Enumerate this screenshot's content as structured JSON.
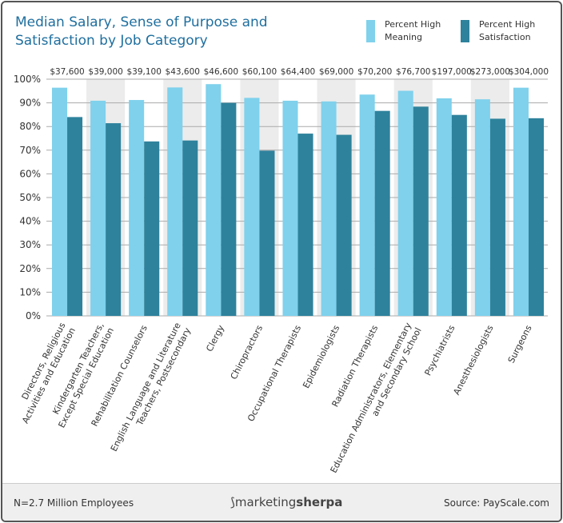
{
  "chart_data": {
    "type": "bar",
    "title": "Median Salary, Sense of Purpose and Satisfaction by Job Category",
    "categories": [
      "Directors, Religious Activities  and Education",
      "Kindergarten Teachers, Except Special Education",
      "Rehabilitation Counselors",
      "English Language and Literature Teachers, Postsecondary",
      "Clergy",
      "Chiropractors",
      "Occupational Therapists",
      "Epidemiologists",
      "Radiation Therapists",
      "Education Administrators, Elementary and Secondary School",
      "Psychiatrists",
      "Anesthesiologists",
      "Surgeons"
    ],
    "category_lines": [
      [
        "Directors, Religious",
        "Activities  and Education"
      ],
      [
        "Kindergarten Teachers,",
        "Except Special Education"
      ],
      [
        "Rehabilitation Counselors"
      ],
      [
        "English Language and Literature",
        "Teachers, Postsecondary"
      ],
      [
        "Clergy"
      ],
      [
        "Chiropractors"
      ],
      [
        "Occupational Therapists"
      ],
      [
        "Epidemiologists"
      ],
      [
        "Radiation Therapists"
      ],
      [
        "Education Administrators, Elementary",
        "and Secondary School"
      ],
      [
        "Psychiatrists"
      ],
      [
        "Anesthesiologists"
      ],
      [
        "Surgeons"
      ]
    ],
    "salaries": [
      "$37,600",
      "$39,000",
      "$39,100",
      "$43,600",
      "$46,600",
      "$60,100",
      "$64,400",
      "$69,000",
      "$70,200",
      "$76,700",
      "$197,000",
      "$273,000",
      "$304,000"
    ],
    "series": [
      {
        "name": "Percent High Meaning",
        "color": "#7fd1ec",
        "values": [
          96.4,
          90.9,
          91.2,
          96.5,
          97.9,
          92.1,
          90.9,
          90.6,
          93.5,
          95.1,
          91.9,
          91.5,
          96.4
        ]
      },
      {
        "name": "Percent High Satisfaction",
        "color": "#2e829c",
        "values": [
          84.0,
          81.4,
          73.7,
          74.1,
          90.0,
          69.8,
          77.0,
          76.5,
          86.6,
          88.4,
          84.9,
          83.3,
          83.5
        ]
      }
    ],
    "ylim": [
      0,
      100
    ],
    "yticks": [
      "0%",
      "10%",
      "20%",
      "30%",
      "40%",
      "50%",
      "60%",
      "70%",
      "80%",
      "90%",
      "100%"
    ],
    "grid": true,
    "legend": "top-right",
    "alternating_band_color": "#ececec"
  },
  "legend": {
    "meaning": [
      "Percent High",
      "Meaning"
    ],
    "satisfaction": [
      "Percent High",
      "Satisfaction"
    ]
  },
  "footer": {
    "n": "N=2.7 Million Employees",
    "logo": "marketingsherpa",
    "logo_a": "marketing",
    "logo_b": "sherpa",
    "source": "Source: PayScale.com"
  }
}
